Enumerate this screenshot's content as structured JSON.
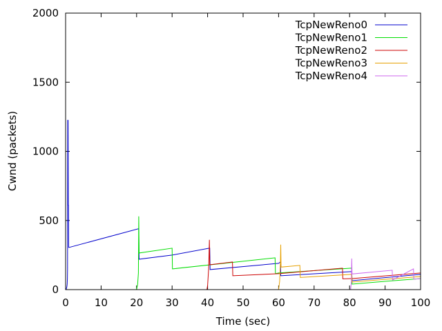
{
  "chart_data": {
    "type": "line",
    "title": "",
    "xlabel": "Time (sec)",
    "ylabel": "Cwnd (packets)",
    "xlim": [
      0,
      100
    ],
    "ylim": [
      0,
      2000
    ],
    "xticks": [
      "0",
      "10",
      "20",
      "30",
      "40",
      "50",
      "60",
      "70",
      "80",
      "90",
      "100"
    ],
    "yticks": [
      "0",
      "500",
      "1000",
      "1500",
      "2000"
    ],
    "grid": false,
    "legend": "top-right",
    "series": [
      {
        "name": "TcpNewReno0",
        "color": "#0000cc",
        "x": [
          0.0,
          0.2,
          0.35,
          0.45,
          0.5,
          0.55,
          0.6,
          0.7,
          0.75,
          0.8,
          0.85,
          1.0,
          20.5,
          20.6,
          20.7,
          30.0,
          40.5,
          40.6,
          40.7,
          60.0,
          60.5,
          60.6,
          80.5,
          80.6,
          80.7,
          100.0
        ],
        "y": [
          0,
          5,
          20,
          40,
          80,
          150,
          1225,
          1225,
          610,
          610,
          305,
          305,
          440,
          440,
          220,
          250,
          300,
          300,
          145,
          190,
          200,
          100,
          130,
          130,
          65,
          110
        ]
      },
      {
        "name": "TcpNewReno1",
        "color": "#00dd00",
        "x": [
          20.0,
          20.3,
          20.5,
          20.6,
          20.7,
          30.0,
          30.1,
          59.0,
          59.1,
          60.0,
          80.5,
          80.6,
          80.7,
          90.0,
          100.0
        ],
        "y": [
          0,
          40,
          120,
          530,
          265,
          300,
          150,
          230,
          115,
          120,
          155,
          155,
          40,
          60,
          80
        ]
      },
      {
        "name": "TcpNewReno2",
        "color": "#cc0000",
        "x": [
          39.8,
          40.0,
          40.3,
          40.5,
          40.6,
          40.7,
          47.0,
          47.1,
          60.0,
          78.0,
          78.1,
          80.5,
          80.6,
          80.7,
          100.0
        ],
        "y": [
          0,
          30,
          150,
          360,
          180,
          180,
          200,
          100,
          115,
          155,
          78,
          80,
          80,
          80,
          120
        ]
      },
      {
        "name": "TcpNewReno3",
        "color": "#e6a000",
        "x": [
          60.0,
          60.3,
          60.5,
          60.6,
          60.7,
          66.0,
          66.1,
          80.5,
          80.6,
          80.7,
          100.0
        ],
        "y": [
          0,
          60,
          200,
          325,
          163,
          175,
          88,
          110,
          110,
          55,
          95
        ]
      },
      {
        "name": "TcpNewReno4",
        "color": "#cc66ee",
        "x": [
          80.3,
          80.5,
          80.6,
          80.7,
          92.0,
          92.1,
          98.0,
          98.1,
          100.0
        ],
        "y": [
          0,
          60,
          225,
          113,
          140,
          70,
          150,
          75,
          80
        ]
      }
    ]
  }
}
